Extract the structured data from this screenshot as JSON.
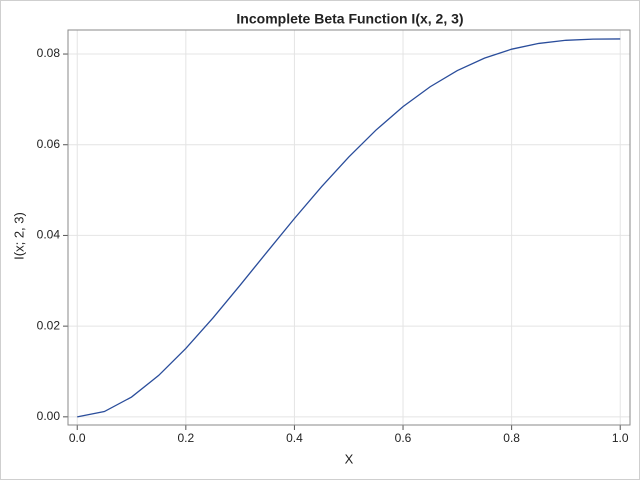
{
  "chart_data": {
    "type": "line",
    "title": "Incomplete Beta Function I(x, 2, 3)",
    "x_label": "X",
    "y_label": "I(x; 2, 3)",
    "x": [
      0,
      0.05,
      0.1,
      0.15,
      0.2,
      0.25,
      0.3,
      0.35,
      0.4,
      0.45,
      0.5,
      0.55,
      0.6,
      0.65,
      0.7,
      0.75,
      0.8,
      0.85,
      0.9,
      0.95,
      1.0
    ],
    "values": [
      0,
      0.00117,
      0.00436,
      0.00913,
      0.01507,
      0.02181,
      0.02903,
      0.03642,
      0.04373,
      0.05075,
      0.05729,
      0.06321,
      0.0684,
      0.07279,
      0.07636,
      0.0791,
      0.08107,
      0.08234,
      0.08303,
      0.08329,
      0.08333
    ],
    "color": "#2a4d9b",
    "xlim": [
      -0.017,
      1.018
    ],
    "ylim": [
      -0.0018,
      0.0853
    ],
    "xticks": [
      {
        "value": 0,
        "label": "0.0"
      },
      {
        "value": 0.2,
        "label": "0.2"
      },
      {
        "value": 0.4,
        "label": "0.4"
      },
      {
        "value": 0.6,
        "label": "0.6"
      },
      {
        "value": 0.8,
        "label": "0.8"
      },
      {
        "value": 1.0,
        "label": "1.0"
      }
    ],
    "yticks": [
      {
        "value": 0,
        "label": "0.00"
      },
      {
        "value": 0.02,
        "label": "0.02"
      },
      {
        "value": 0.04,
        "label": "0.04"
      },
      {
        "value": 0.06,
        "label": "0.06"
      },
      {
        "value": 0.08,
        "label": "0.08"
      }
    ],
    "grid": true
  }
}
